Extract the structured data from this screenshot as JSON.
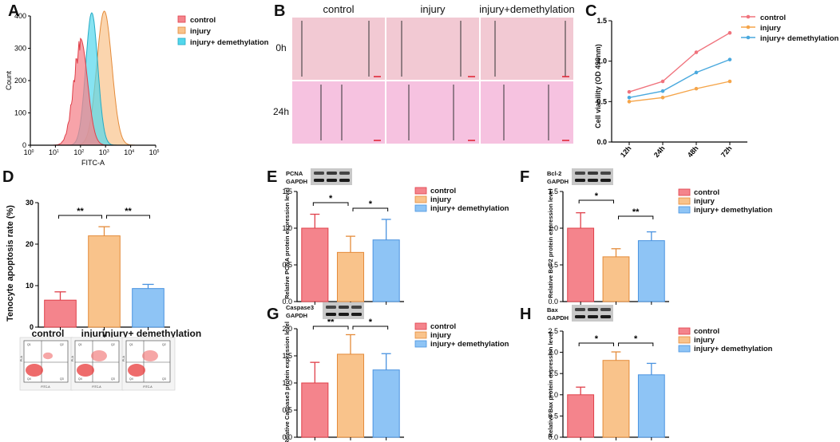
{
  "panel_labels": {
    "a": "A",
    "b": "B",
    "c": "C",
    "d": "D",
    "e": "E",
    "f": "F",
    "g": "G",
    "h": "H"
  },
  "colors": {
    "control": "#f4848c",
    "injury": "#f9c38b",
    "demethylation": "#8ec4f5",
    "control_line": "#f0737d",
    "injury_line": "#f5a54a",
    "demethylation_line": "#4aa9de",
    "hist_cyan": "#52d7ec",
    "wound_0h": "#f2c9d3",
    "wound_24h": "#f6c2e0"
  },
  "chart_data": [
    {
      "id": "A",
      "type": "histogram",
      "xlabel": "FITC-A",
      "ylabel": "Count",
      "xlim_log10": [
        0,
        5
      ],
      "ylim": [
        0,
        400
      ],
      "y_ticks": [
        "0",
        "100",
        "200",
        "300",
        "400"
      ],
      "x_ticks": [
        "10^0",
        "10^1",
        "10^2",
        "10^3",
        "10^4",
        "10^5"
      ],
      "legend": [
        "control",
        "injury",
        "injury+ demethylation"
      ],
      "series": [
        {
          "name": "control",
          "peak_log10": 2.0,
          "peak_count": 330
        },
        {
          "name": "injury",
          "peak_log10": 2.95,
          "peak_count": 415
        },
        {
          "name": "injury+ demethylation",
          "peak_log10": 2.45,
          "peak_count": 410
        }
      ]
    },
    {
      "id": "B",
      "type": "image-grid",
      "columns": [
        "control",
        "injury",
        "injury+demethylation"
      ],
      "rows": [
        "0h",
        "24h"
      ]
    },
    {
      "id": "C",
      "type": "line",
      "ylabel": "Cell viability (OD 490nm)",
      "categories": [
        "12h",
        "24h",
        "48h",
        "72h"
      ],
      "ylim": [
        0,
        1.5
      ],
      "y_ticks": [
        "0.0",
        "0.5",
        "1.0",
        "1.5"
      ],
      "series": [
        {
          "name": "control",
          "values": [
            0.62,
            0.75,
            1.11,
            1.35
          ]
        },
        {
          "name": "injury",
          "values": [
            0.5,
            0.55,
            0.66,
            0.75
          ]
        },
        {
          "name": "injury+ demethylation",
          "values": [
            0.55,
            0.63,
            0.86,
            1.02
          ]
        }
      ]
    },
    {
      "id": "D",
      "type": "bar",
      "ylabel": "Tenocyte apoptosis rate (%)",
      "categories": [
        "control",
        "injury",
        "injury+ demethylation"
      ],
      "values": [
        6.5,
        22,
        9.3
      ],
      "errors": [
        2,
        2.2,
        1
      ],
      "ylim": [
        0,
        30
      ],
      "y_ticks": [
        "0",
        "10",
        "20",
        "30"
      ],
      "significance": [
        {
          "from": 0,
          "to": 1,
          "label": "**"
        },
        {
          "from": 1,
          "to": 2,
          "label": "**"
        }
      ],
      "blot_labels": [
        "Q1",
        "Q2",
        "Q3",
        "Q4",
        "FITC-A",
        "PI-A"
      ]
    },
    {
      "id": "E",
      "type": "bar",
      "protein": "PCNA",
      "loading": "GAPDH",
      "ylabel": "Relative PCNA protein expression  level",
      "categories": [
        "control",
        "injury",
        "injury+ demethylation"
      ],
      "values": [
        1.0,
        0.67,
        0.84
      ],
      "errors": [
        0.19,
        0.22,
        0.28
      ],
      "ylim": [
        0,
        1.5
      ],
      "y_ticks": [
        "0.0",
        "0.5",
        "1.0",
        "1.5"
      ],
      "significance": [
        {
          "from": 0,
          "to": 1,
          "label": "*"
        },
        {
          "from": 1,
          "to": 2,
          "label": "*"
        }
      ]
    },
    {
      "id": "F",
      "type": "bar",
      "protein": "Bcl-2",
      "loading": "GAPDH",
      "ylabel": "Relative Bcl-2 protein expression  level",
      "categories": [
        "control",
        "injury",
        "injury+ demethylation"
      ],
      "values": [
        1.0,
        0.61,
        0.83
      ],
      "errors": [
        0.21,
        0.11,
        0.12
      ],
      "ylim": [
        0,
        1.5
      ],
      "y_ticks": [
        "0.0",
        "0.5",
        "1.0",
        "1.5"
      ],
      "significance": [
        {
          "from": 0,
          "to": 1,
          "label": "*"
        },
        {
          "from": 1,
          "to": 2,
          "label": "**"
        }
      ]
    },
    {
      "id": "G",
      "type": "bar",
      "protein": "Caspase3",
      "loading": "GAPDH",
      "ylabel": "Relative Caspase3 protein expression  level",
      "categories": [
        "control",
        "injury",
        "injury+ demethylation"
      ],
      "values": [
        1.0,
        1.53,
        1.24
      ],
      "errors": [
        0.38,
        0.36,
        0.3
      ],
      "ylim": [
        0,
        2.0
      ],
      "y_ticks": [
        "0.0",
        "0.5",
        "1.0",
        "1.5",
        "2.0"
      ],
      "significance": [
        {
          "from": 0,
          "to": 1,
          "label": "**"
        },
        {
          "from": 1,
          "to": 2,
          "label": "*"
        }
      ]
    },
    {
      "id": "H",
      "type": "bar",
      "protein": "Bax",
      "loading": "GAPDH",
      "ylabel": "Relative Bax protein expression  level",
      "categories": [
        "control",
        "injury",
        "injury+ demethylation"
      ],
      "values": [
        1.0,
        1.81,
        1.47
      ],
      "errors": [
        0.18,
        0.2,
        0.27
      ],
      "ylim": [
        0,
        2.5
      ],
      "y_ticks": [
        "0.0",
        "0.5",
        "1.0",
        "1.5",
        "2.0",
        "2.5"
      ],
      "significance": [
        {
          "from": 0,
          "to": 1,
          "label": "*"
        },
        {
          "from": 1,
          "to": 2,
          "label": "*"
        }
      ]
    }
  ]
}
